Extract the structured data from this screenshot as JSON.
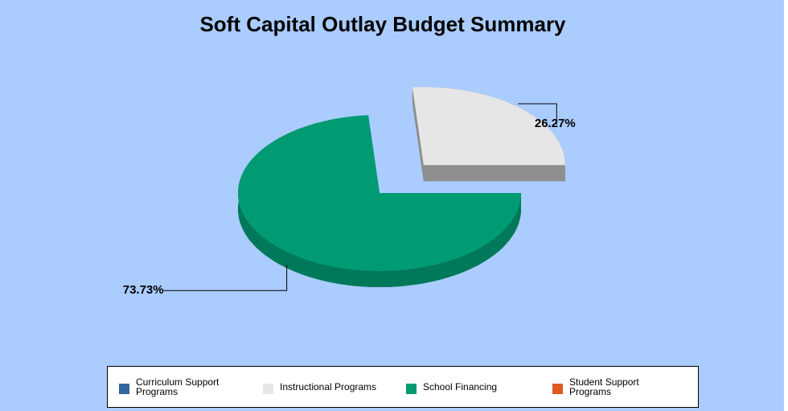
{
  "chart_data": {
    "type": "pie",
    "title": "Soft Capital Outlay Budget Summary",
    "categories": [
      "Curriculum Support Programs",
      "Instructional Programs",
      "School Financing",
      "Student Support Programs"
    ],
    "values": [
      0,
      26.27,
      73.73,
      0
    ],
    "value_labels": [
      null,
      "26.27%",
      "73.73%",
      null
    ],
    "colors": [
      "#336699",
      "#e6e6e6",
      "#009a73",
      "#e05a1e"
    ],
    "explode": [
      false,
      true,
      false,
      false
    ],
    "legend": "bottom"
  }
}
